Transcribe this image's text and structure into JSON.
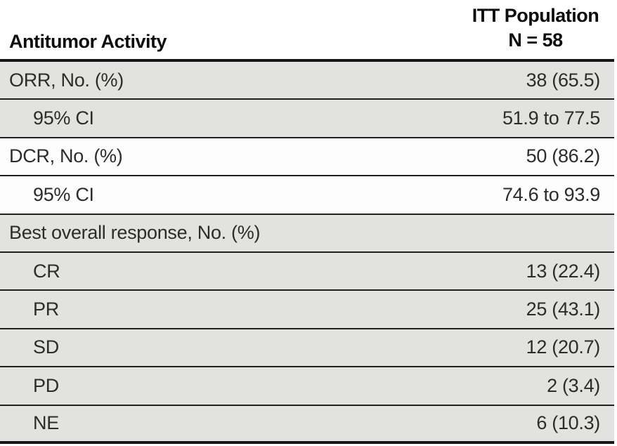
{
  "table": {
    "title_column_header": "Antitumor Activity",
    "value_column_header_line1": "ITT Population",
    "value_column_header_line2": "N = 58",
    "rows": [
      {
        "label": "ORR, No. (%)",
        "value": "38 (65.5)",
        "indent": false,
        "shaded": true
      },
      {
        "label": "95% CI",
        "value": "51.9 to 77.5",
        "indent": true,
        "shaded": true
      },
      {
        "label": "DCR, No. (%)",
        "value": "50 (86.2)",
        "indent": false,
        "shaded": false
      },
      {
        "label": "95% CI",
        "value": "74.6 to 93.9",
        "indent": true,
        "shaded": false
      },
      {
        "label": "Best overall response, No. (%)",
        "value": "",
        "indent": false,
        "shaded": true
      },
      {
        "label": "CR",
        "value": "13 (22.4)",
        "indent": true,
        "shaded": true
      },
      {
        "label": "PR",
        "value": "25 (43.1)",
        "indent": true,
        "shaded": true
      },
      {
        "label": "SD",
        "value": "12 (20.7)",
        "indent": true,
        "shaded": true
      },
      {
        "label": "PD",
        "value": "2 (3.4)",
        "indent": true,
        "shaded": true
      },
      {
        "label": "NE",
        "value": "6 (10.3)",
        "indent": true,
        "shaded": true
      }
    ],
    "colors": {
      "shaded_row_background": "#e2e2e0",
      "rule": "#20201e",
      "heavy_rule": "#161614",
      "text": "#2c2c2a"
    }
  },
  "chart_data": {
    "type": "table",
    "title": "Antitumor Activity — ITT Population (N = 58)",
    "columns": [
      "Antitumor Activity",
      "ITT Population N = 58"
    ],
    "rows": [
      [
        "ORR, No. (%)",
        "38 (65.5)"
      ],
      [
        "95% CI",
        "51.9 to 77.5"
      ],
      [
        "DCR, No. (%)",
        "50 (86.2)"
      ],
      [
        "95% CI",
        "74.6 to 93.9"
      ],
      [
        "Best overall response, No. (%)",
        ""
      ],
      [
        "CR",
        "13 (22.4)"
      ],
      [
        "PR",
        "25 (43.1)"
      ],
      [
        "SD",
        "12 (20.7)"
      ],
      [
        "PD",
        "2 (3.4)"
      ],
      [
        "NE",
        "6 (10.3)"
      ]
    ]
  }
}
